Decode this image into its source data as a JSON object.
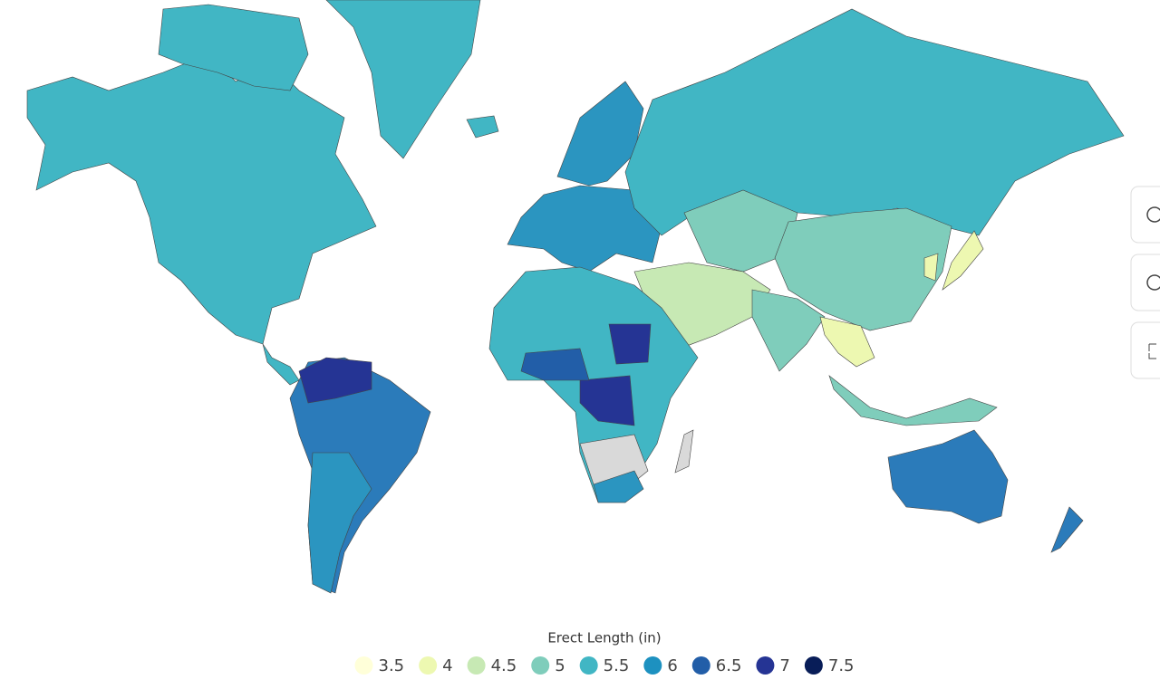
{
  "legend": {
    "title": "Erect Length (in)",
    "items": [
      {
        "value": 3.5,
        "color": "#ffffd9"
      },
      {
        "value": 4,
        "color": "#edf8b1"
      },
      {
        "value": 4.5,
        "color": "#c7e9b4"
      },
      {
        "value": 5,
        "color": "#7fcdbb"
      },
      {
        "value": 5.5,
        "color": "#41b6c4"
      },
      {
        "value": 6,
        "color": "#1d91c0"
      },
      {
        "value": 6.5,
        "color": "#225ea8"
      },
      {
        "value": 7,
        "color": "#253494"
      },
      {
        "value": 7.5,
        "color": "#081d58"
      }
    ]
  }
}
